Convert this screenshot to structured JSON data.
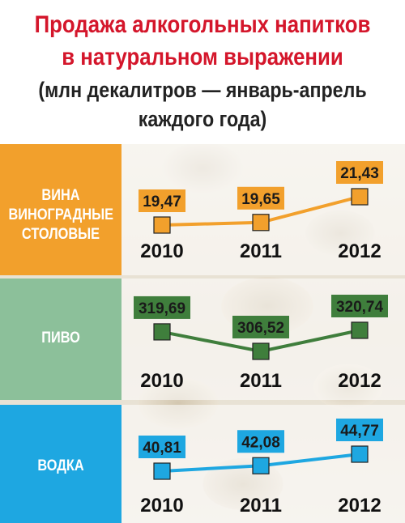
{
  "title": {
    "line1": "Продажа алкогольных напитков",
    "line2": "в натуральном выражении",
    "subtitle1": "(млн декалитров — январь-апрель",
    "subtitle2": "каждого года)"
  },
  "colors": {
    "title": "#d4162b",
    "wine": "#f2a02c",
    "beer": "#3f7e3c",
    "vodka": "#1ea7e1",
    "beer_band": "#8cc09a"
  },
  "chart_data": [
    {
      "type": "line",
      "name": "ВИНА ВИНОГРАДНЫЕ СТОЛОВЫЕ",
      "label_lines": [
        "ВИНА",
        "ВИНОГРАДНЫЕ",
        "СТОЛОВЫЕ"
      ],
      "x": [
        "2010",
        "2011",
        "2012"
      ],
      "values": [
        19.47,
        19.65,
        21.43
      ],
      "value_labels": [
        "19,47",
        "19,65",
        "21,43"
      ]
    },
    {
      "type": "line",
      "name": "ПИВО",
      "label_lines": [
        "ПИВО"
      ],
      "x": [
        "2010",
        "2011",
        "2012"
      ],
      "values": [
        319.69,
        306.52,
        320.74
      ],
      "value_labels": [
        "319,69",
        "306,52",
        "320,74"
      ]
    },
    {
      "type": "line",
      "name": "ВОДКА",
      "label_lines": [
        "ВОДКА"
      ],
      "x": [
        "2010",
        "2011",
        "2012"
      ],
      "values": [
        40.81,
        42.08,
        44.77
      ],
      "value_labels": [
        "40,81",
        "42,08",
        "44,77"
      ]
    }
  ]
}
